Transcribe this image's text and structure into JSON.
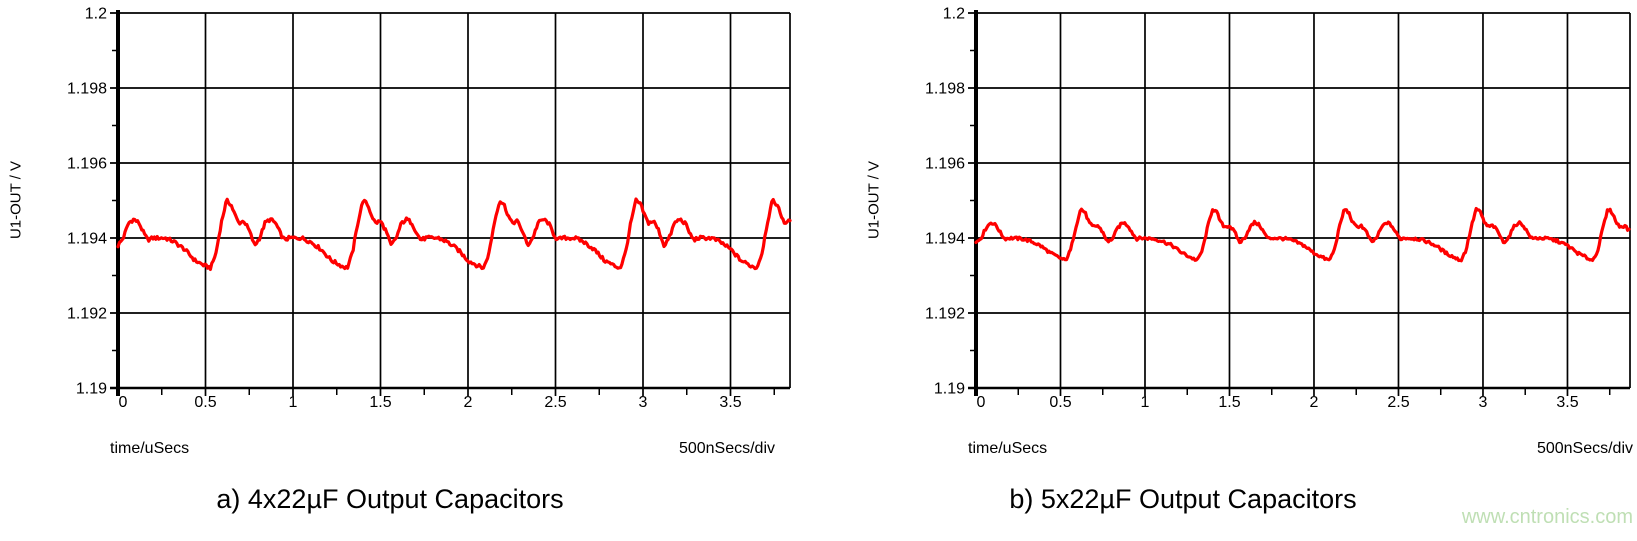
{
  "watermark": {
    "text": "www.cntronics.com",
    "color": "#bfdfb4"
  },
  "colors": {
    "background": "#ffffff",
    "grid": "#000000",
    "axis": "#000000",
    "text": "#000000",
    "trace": "#ff0000"
  },
  "chart_data": [
    {
      "type": "line",
      "title": "a) 4x22µF Output Capacitors",
      "ylabel": "U1-OUT / V",
      "xlabel": "time/uSecs",
      "scale_note": "500nSecs/div",
      "xlim": [
        0,
        3.84
      ],
      "ylim": [
        1.19,
        1.2
      ],
      "x_ticks": [
        0,
        0.5,
        1,
        1.5,
        2,
        2.5,
        3,
        3.5
      ],
      "x_tick_labels": [
        "0",
        "0.5",
        "1",
        "1.5",
        "2",
        "2.5",
        "3",
        "3.5"
      ],
      "x_minor_ticks": [
        0.25,
        0.75,
        1.25,
        1.75,
        2.25,
        2.75,
        3.25,
        3.75
      ],
      "y_ticks": [
        1.19,
        1.192,
        1.194,
        1.196,
        1.198,
        1.2
      ],
      "y_tick_labels": [
        "1.19",
        "1.192",
        "1.194",
        "1.196",
        "1.198",
        "1.2"
      ],
      "y_minor_ticks": [
        1.191,
        1.193,
        1.195,
        1.197,
        1.199
      ],
      "grid": true,
      "series": [
        {
          "name": "U1-OUT",
          "color": "#ff0000",
          "period_us": 0.78,
          "peak_times_us": [
            -0.16,
            0.62,
            1.4,
            2.18,
            2.96,
            3.74
          ],
          "noise_v": 5e-05,
          "cycle_points": [
            [
              -0.42,
              1.194
            ],
            [
              -0.35,
              1.194
            ],
            [
              -0.3,
              1.1939
            ],
            [
              -0.24,
              1.1937
            ],
            [
              -0.18,
              1.1934
            ],
            [
              -0.12,
              1.19325
            ],
            [
              -0.09,
              1.1932
            ],
            [
              -0.06,
              1.1936
            ],
            [
              -0.03,
              1.1944
            ],
            [
              0.0,
              1.195
            ],
            [
              0.025,
              1.1949
            ],
            [
              0.05,
              1.1946
            ],
            [
              0.07,
              1.1944
            ],
            [
              0.1,
              1.19445
            ],
            [
              0.13,
              1.1942
            ],
            [
              0.16,
              1.1938
            ],
            [
              0.19,
              1.194
            ],
            [
              0.22,
              1.1944
            ],
            [
              0.25,
              1.1945
            ],
            [
              0.28,
              1.1944
            ],
            [
              0.31,
              1.1941
            ],
            [
              0.33,
              1.19395
            ],
            [
              0.36,
              1.194
            ]
          ]
        }
      ]
    },
    {
      "type": "line",
      "title": "b) 5x22µF Output Capacitors",
      "ylabel": "U1-OUT / V",
      "xlabel": "time/uSecs",
      "scale_note": "500nSecs/div",
      "xlim": [
        0,
        3.87
      ],
      "ylim": [
        1.19,
        1.2
      ],
      "x_ticks": [
        0,
        0.5,
        1,
        1.5,
        2,
        2.5,
        3,
        3.5
      ],
      "x_tick_labels": [
        "0",
        "0.5",
        "1",
        "1.5",
        "2",
        "2.5",
        "3",
        "3.5"
      ],
      "x_minor_ticks": [
        0.25,
        0.75,
        1.25,
        1.75,
        2.25,
        2.75,
        3.25,
        3.75
      ],
      "y_ticks": [
        1.19,
        1.192,
        1.194,
        1.196,
        1.198,
        1.2
      ],
      "y_tick_labels": [
        "1.19",
        "1.192",
        "1.194",
        "1.196",
        "1.198",
        "1.2"
      ],
      "y_minor_ticks": [
        1.191,
        1.193,
        1.195,
        1.197,
        1.199
      ],
      "grid": true,
      "series": [
        {
          "name": "U1-OUT",
          "color": "#ff0000",
          "period_us": 0.78,
          "peak_times_us": [
            -0.16,
            0.62,
            1.4,
            2.18,
            2.96,
            3.74
          ],
          "noise_v": 4e-05,
          "cycle_points": [
            [
              -0.42,
              1.194
            ],
            [
              -0.35,
              1.19398
            ],
            [
              -0.3,
              1.19392
            ],
            [
              -0.24,
              1.1938
            ],
            [
              -0.18,
              1.1936
            ],
            [
              -0.12,
              1.19346
            ],
            [
              -0.09,
              1.1934
            ],
            [
              -0.06,
              1.19368
            ],
            [
              -0.03,
              1.19428
            ],
            [
              0.0,
              1.19478
            ],
            [
              0.025,
              1.19468
            ],
            [
              0.05,
              1.1944
            ],
            [
              0.07,
              1.1943
            ],
            [
              0.1,
              1.19433
            ],
            [
              0.13,
              1.19416
            ],
            [
              0.16,
              1.19388
            ],
            [
              0.19,
              1.194
            ],
            [
              0.22,
              1.19428
            ],
            [
              0.25,
              1.19442
            ],
            [
              0.28,
              1.19433
            ],
            [
              0.31,
              1.1941
            ],
            [
              0.33,
              1.19398
            ],
            [
              0.36,
              1.194
            ]
          ]
        }
      ]
    }
  ]
}
